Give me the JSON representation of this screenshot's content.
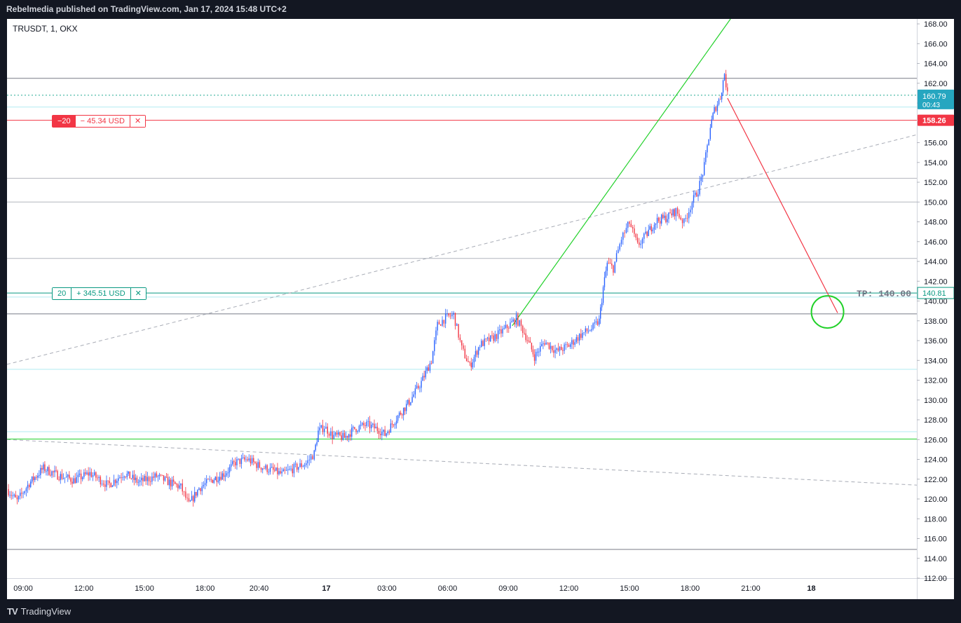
{
  "header": {
    "title": "Rebelmedia published on TradingView.com, Jan 17, 2024 15:48 UTC+2"
  },
  "footer": {
    "brand": "TradingView",
    "logo": "TV"
  },
  "chart": {
    "symbol": "TRUSDT, 1, OKX"
  },
  "orders": [
    {
      "qty": "−20",
      "pnl": "− 45.34 USD",
      "close": "✕",
      "color": "#f23645",
      "price": 158.26
    },
    {
      "qty": "20",
      "pnl": "+ 345.51 USD",
      "close": "✕",
      "color": "#089981",
      "price": 140.81
    }
  ],
  "price_labels": {
    "current": "160.79",
    "countdown": "00:43",
    "short_entry": "158.26",
    "long_entry": "140.81",
    "tp_text": "TP: 140.00"
  },
  "chart_data": {
    "type": "candlestick",
    "title": "TRUSDT, 1, OKX",
    "xlabel": "",
    "ylabel": "",
    "ylim": [
      112,
      168.5
    ],
    "yticks": [
      112,
      114,
      116,
      118,
      120,
      122,
      124,
      126,
      128,
      130,
      132,
      134,
      136,
      138,
      140,
      142,
      144,
      146,
      148,
      150,
      152,
      154,
      156,
      158,
      160,
      162,
      164,
      166,
      168
    ],
    "xticks": [
      {
        "label": "09:00",
        "t": 0,
        "bold": false
      },
      {
        "label": "12:00",
        "t": 3,
        "bold": false
      },
      {
        "label": "15:00",
        "t": 6,
        "bold": false
      },
      {
        "label": "18:00",
        "t": 9,
        "bold": false
      },
      {
        "label": "20:40",
        "t": 11.67,
        "bold": false
      },
      {
        "label": "17",
        "t": 15,
        "bold": true
      },
      {
        "label": "03:00",
        "t": 18,
        "bold": false
      },
      {
        "label": "06:00",
        "t": 21,
        "bold": false
      },
      {
        "label": "09:00",
        "t": 24,
        "bold": false
      },
      {
        "label": "12:00",
        "t": 27,
        "bold": false
      },
      {
        "label": "15:00",
        "t": 30,
        "bold": false
      },
      {
        "label": "18:00",
        "t": 33,
        "bold": false
      },
      {
        "label": "21:00",
        "t": 36,
        "bold": false
      },
      {
        "label": "18",
        "t": 39,
        "bold": true
      }
    ],
    "xlim": [
      -0.8,
      44.22
    ],
    "price_path": [
      [
        -0.8,
        121.0
      ],
      [
        -0.3,
        119.8
      ],
      [
        0.3,
        121.6
      ],
      [
        1.0,
        123.1
      ],
      [
        1.7,
        122.4
      ],
      [
        2.5,
        121.9
      ],
      [
        3.3,
        122.6
      ],
      [
        4.2,
        121.4
      ],
      [
        5.0,
        122.6
      ],
      [
        5.7,
        121.7
      ],
      [
        6.6,
        122.3
      ],
      [
        7.3,
        121.6
      ],
      [
        7.8,
        121.2
      ],
      [
        8.2,
        119.4
      ],
      [
        8.7,
        121.1
      ],
      [
        9.3,
        121.9
      ],
      [
        10.0,
        122.6
      ],
      [
        10.5,
        123.7
      ],
      [
        11.1,
        124.0
      ],
      [
        11.7,
        123.3
      ],
      [
        12.3,
        122.9
      ],
      [
        12.8,
        122.5
      ],
      [
        13.4,
        123.1
      ],
      [
        14.0,
        123.6
      ],
      [
        14.4,
        124.6
      ],
      [
        14.6,
        126.8
      ],
      [
        14.9,
        127.3
      ],
      [
        15.3,
        126.4
      ],
      [
        15.9,
        126.2
      ],
      [
        16.4,
        127.1
      ],
      [
        17.0,
        127.5
      ],
      [
        17.6,
        127.0
      ],
      [
        17.9,
        126.5
      ],
      [
        18.4,
        128.0
      ],
      [
        19.1,
        129.8
      ],
      [
        19.7,
        131.8
      ],
      [
        20.2,
        134.0
      ],
      [
        20.5,
        137.6
      ],
      [
        20.9,
        138.3
      ],
      [
        21.3,
        138.6
      ],
      [
        21.7,
        135.2
      ],
      [
        22.1,
        133.4
      ],
      [
        22.6,
        135.6
      ],
      [
        23.2,
        136.2
      ],
      [
        23.8,
        137.1
      ],
      [
        24.4,
        138.2
      ],
      [
        24.8,
        136.8
      ],
      [
        25.3,
        134.4
      ],
      [
        25.8,
        135.9
      ],
      [
        26.4,
        134.9
      ],
      [
        27.0,
        135.5
      ],
      [
        27.6,
        136.6
      ],
      [
        28.2,
        137.3
      ],
      [
        28.5,
        138.0
      ],
      [
        28.7,
        141.3
      ],
      [
        28.9,
        143.8
      ],
      [
        29.2,
        143.3
      ],
      [
        29.6,
        146.3
      ],
      [
        30.0,
        147.9
      ],
      [
        30.4,
        145.6
      ],
      [
        30.8,
        146.6
      ],
      [
        31.3,
        148.1
      ],
      [
        31.8,
        148.4
      ],
      [
        32.3,
        149.1
      ],
      [
        32.7,
        147.9
      ],
      [
        33.1,
        150.0
      ],
      [
        33.4,
        151.2
      ],
      [
        33.7,
        153.6
      ],
      [
        34.0,
        157.6
      ],
      [
        34.2,
        159.3
      ],
      [
        34.5,
        160.6
      ],
      [
        34.7,
        163.0
      ],
      [
        34.85,
        160.79
      ]
    ],
    "indicator_lines": [
      {
        "name": "dashed_upper",
        "style": "dashed",
        "color": "#a8acb6",
        "p1": [
          -0.8,
          133.6
        ],
        "p2": [
          44.22,
          156.8
        ]
      },
      {
        "name": "dashed_lower",
        "style": "dashed",
        "color": "#a8acb6",
        "p1": [
          -0.8,
          126.0
        ],
        "p2": [
          44.22,
          121.4
        ]
      },
      {
        "name": "green_trend",
        "style": "solid",
        "color": "#22d12a",
        "p1": [
          24.2,
          137.5
        ],
        "p2": [
          35.0,
          168.5
        ]
      },
      {
        "name": "red_projection",
        "style": "solid",
        "color": "#f23645",
        "p1": [
          34.85,
          160.5
        ],
        "p2": [
          40.3,
          138.8
        ]
      }
    ],
    "horizontal_levels": [
      {
        "price": 162.5,
        "color": "#787b86",
        "style": "solid"
      },
      {
        "price": 160.79,
        "color": "#22ab94",
        "style": "dotted"
      },
      {
        "price": 159.6,
        "color": "#b2ebf2",
        "style": "solid"
      },
      {
        "price": 158.26,
        "color": "#f23645",
        "style": "solid"
      },
      {
        "price": 152.4,
        "color": "#b2b5be",
        "style": "solid"
      },
      {
        "price": 150.0,
        "color": "#b2b5be",
        "style": "solid"
      },
      {
        "price": 144.3,
        "color": "#b2b5be",
        "style": "solid"
      },
      {
        "price": 140.81,
        "color": "#089981",
        "style": "solid"
      },
      {
        "price": 140.4,
        "color": "#b2ebf2",
        "style": "solid"
      },
      {
        "price": 138.7,
        "color": "#787b86",
        "style": "solid"
      },
      {
        "price": 133.1,
        "color": "#b2ebf2",
        "style": "solid"
      },
      {
        "price": 126.8,
        "color": "#b2ebf2",
        "style": "solid"
      },
      {
        "price": 126.05,
        "color": "#22d12a",
        "style": "solid"
      },
      {
        "price": 114.9,
        "color": "#787b86",
        "style": "solid"
      }
    ],
    "target_circle": {
      "t": 39.8,
      "price": 138.9,
      "color": "#22d12a"
    },
    "colors": {
      "up": "#2962ff",
      "down": "#f23645",
      "grid": "#f0f3fa",
      "axis_text": "#131722"
    }
  }
}
